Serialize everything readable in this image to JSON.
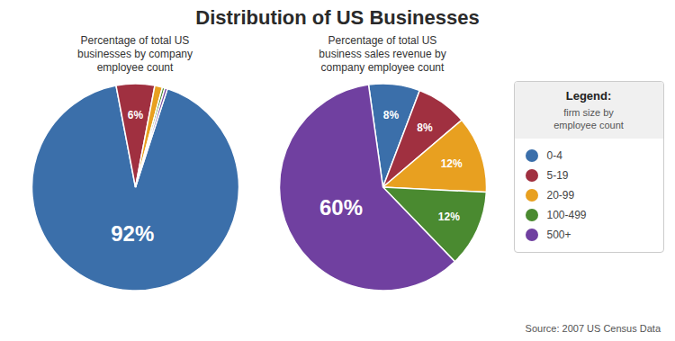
{
  "title": "Distribution of US Businesses",
  "legend": "right",
  "legend_title": "Legend:",
  "legend_subtitle": "firm size by\nemployee count",
  "source": "Source: 2007 US Census Data",
  "chart_data": [
    {
      "type": "pie",
      "subtitle": "Percentage of total US\nbusinesses by company\nemployee count",
      "categories": [
        "0-4",
        "5-19",
        "20-99",
        "100-499",
        "500+"
      ],
      "values": [
        92,
        6,
        1.2,
        0.4,
        0.4
      ],
      "value_labels": [
        "92%",
        "6%",
        null,
        null,
        null
      ],
      "colors": [
        "#3b6faa",
        "#a03040",
        "#e8a020",
        "#4a8a30",
        "#7040a0"
      ]
    },
    {
      "type": "pie",
      "subtitle": "Percentage of total US\nbusiness sales revenue by\ncompany employee count",
      "categories": [
        "0-4",
        "5-19",
        "20-99",
        "100-499",
        "500+"
      ],
      "values": [
        8,
        8,
        12,
        12,
        60
      ],
      "value_labels": [
        "8%",
        "8%",
        "12%",
        "12%",
        "60%"
      ],
      "colors": [
        "#3b6faa",
        "#a03040",
        "#e8a020",
        "#4a8a30",
        "#7040a0"
      ]
    }
  ]
}
